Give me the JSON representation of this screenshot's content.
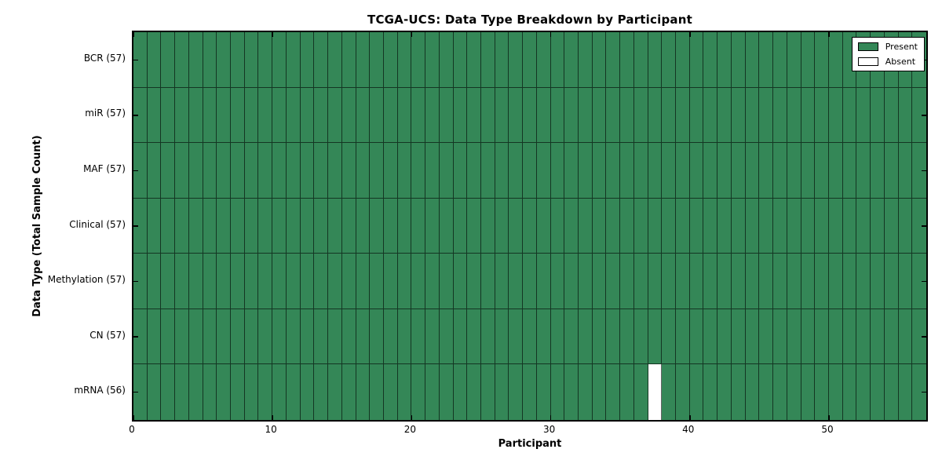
{
  "chart_data": {
    "type": "heatmap",
    "title": "TCGA-UCS: Data Type Breakdown by Participant",
    "xlabel": "Participant",
    "ylabel": "Data Type (Total Sample Count)",
    "x_ticks": [
      0,
      10,
      20,
      30,
      40,
      50
    ],
    "x_range": [
      0,
      57
    ],
    "n_participants": 57,
    "rows": [
      {
        "label": "BCR (57)",
        "data_type": "BCR",
        "present_count": 57,
        "absent_participants": []
      },
      {
        "label": "miR (57)",
        "data_type": "miR",
        "present_count": 57,
        "absent_participants": []
      },
      {
        "label": "MAF (57)",
        "data_type": "MAF",
        "present_count": 57,
        "absent_participants": []
      },
      {
        "label": "Clinical (57)",
        "data_type": "Clinical",
        "present_count": 57,
        "absent_participants": []
      },
      {
        "label": "Methylation (57)",
        "data_type": "Methylation",
        "present_count": 57,
        "absent_participants": []
      },
      {
        "label": "CN (57)",
        "data_type": "CN",
        "present_count": 57,
        "absent_participants": []
      },
      {
        "label": "mRNA (56)",
        "data_type": "mRNA",
        "present_count": 56,
        "absent_participants": [
          37
        ]
      }
    ],
    "legend": [
      {
        "label": "Present",
        "color": "#348757"
      },
      {
        "label": "Absent",
        "color": "#ffffff"
      }
    ],
    "colors": {
      "present": "#348757",
      "absent": "#ffffff",
      "cell_edge": "rgba(0,0,0,0.6)",
      "axis": "#000000",
      "background": "#ffffff"
    },
    "legend_position": "upper right",
    "tick_direction": "in"
  }
}
